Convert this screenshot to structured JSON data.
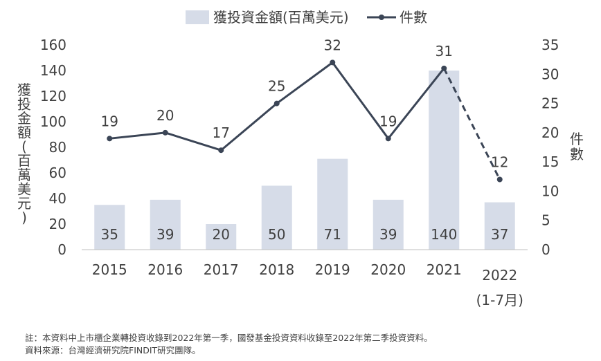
{
  "colors": {
    "bar": "#d6dce8",
    "line": "#3b4556",
    "text": "#404040"
  },
  "chart_data": {
    "type": "bar",
    "categories": [
      "2015",
      "2016",
      "2017",
      "2018",
      "2019",
      "2020",
      "2021",
      "2022"
    ],
    "category_sublabels": [
      "",
      "",
      "",
      "",
      "",
      "",
      "",
      "(1-7月)"
    ],
    "series": [
      {
        "name": "獲投資金額(百萬美元)",
        "type": "bar",
        "axis": "left",
        "values": [
          35,
          39,
          20,
          50,
          71,
          39,
          140,
          37
        ]
      },
      {
        "name": "件數",
        "type": "line",
        "axis": "right",
        "values": [
          19,
          20,
          17,
          25,
          32,
          19,
          31,
          12
        ],
        "dashed_last_segment": true
      }
    ],
    "ylabel_left": "獲投金額(百萬美元)",
    "ylabel_right": "件數",
    "ylim_left": [
      0,
      160
    ],
    "yticks_left": [
      0,
      20,
      40,
      60,
      80,
      100,
      120,
      140,
      160
    ],
    "ylim_right": [
      0,
      35
    ],
    "yticks_right": [
      0,
      5,
      10,
      15,
      20,
      25,
      30,
      35
    ],
    "grid": false,
    "legend_position": "top"
  },
  "notes": [
    "註：本資料中上市櫃企業轉投資收錄到2022年第一季，國發基金投資資料收錄至2022年第二季投資資料。",
    "資料來源：台灣經濟研究院FINDIT研究團隊。"
  ]
}
